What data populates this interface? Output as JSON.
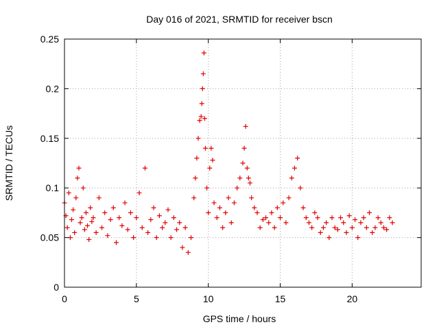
{
  "chart_data": {
    "type": "scatter",
    "title": "Day 016 of 2021, SRMTID for receiver bscn",
    "xlabel": "GPS time / hours",
    "ylabel": "SRMTID / TECUs",
    "xlim": [
      0,
      24.8
    ],
    "ylim": [
      0,
      0.25
    ],
    "x_ticks": [
      0,
      5,
      10,
      15,
      20
    ],
    "y_ticks": [
      0,
      0.05,
      0.1,
      0.15,
      0.2,
      0.25
    ],
    "y_tick_labels": [
      "0",
      "0.05",
      "0.1",
      "0.15",
      "0.2",
      "0.25"
    ],
    "grid": true,
    "marker": "+",
    "marker_color": "#e00000",
    "x_range_of_data": [
      0,
      22.8
    ],
    "series": [
      {
        "name": "SRMTID",
        "x": [
          0.0,
          0.1,
          0.2,
          0.3,
          0.4,
          0.5,
          0.6,
          0.7,
          0.8,
          0.9,
          1.0,
          1.1,
          1.2,
          1.3,
          1.4,
          1.5,
          1.6,
          1.7,
          1.8,
          1.9,
          2.0,
          2.2,
          2.4,
          2.6,
          2.8,
          3.0,
          3.2,
          3.4,
          3.6,
          3.8,
          4.0,
          4.2,
          4.4,
          4.6,
          4.8,
          5.0,
          5.2,
          5.4,
          5.6,
          5.8,
          6.0,
          6.2,
          6.4,
          6.6,
          6.8,
          7.0,
          7.2,
          7.4,
          7.6,
          7.8,
          8.0,
          8.2,
          8.4,
          8.6,
          8.8,
          9.0,
          9.1,
          9.2,
          9.3,
          9.4,
          9.5,
          9.55,
          9.6,
          9.65,
          9.7,
          9.75,
          9.8,
          9.9,
          10.0,
          10.1,
          10.2,
          10.3,
          10.4,
          10.6,
          10.8,
          11.0,
          11.2,
          11.4,
          11.6,
          11.8,
          12.0,
          12.2,
          12.4,
          12.5,
          12.6,
          12.7,
          12.8,
          12.9,
          13.0,
          13.2,
          13.4,
          13.6,
          13.8,
          14.0,
          14.2,
          14.4,
          14.6,
          14.8,
          15.0,
          15.2,
          15.4,
          15.6,
          15.8,
          16.0,
          16.2,
          16.4,
          16.6,
          16.8,
          17.0,
          17.2,
          17.4,
          17.6,
          17.8,
          18.0,
          18.2,
          18.4,
          18.6,
          18.8,
          19.0,
          19.2,
          19.4,
          19.6,
          19.8,
          20.0,
          20.2,
          20.4,
          20.6,
          20.8,
          21.0,
          21.2,
          21.4,
          21.6,
          21.8,
          22.0,
          22.2,
          22.4,
          22.6,
          22.8
        ],
        "y": [
          0.085,
          0.072,
          0.06,
          0.095,
          0.05,
          0.068,
          0.078,
          0.055,
          0.09,
          0.11,
          0.12,
          0.065,
          0.07,
          0.1,
          0.058,
          0.075,
          0.062,
          0.048,
          0.08,
          0.066,
          0.07,
          0.055,
          0.09,
          0.06,
          0.075,
          0.052,
          0.068,
          0.08,
          0.045,
          0.07,
          0.062,
          0.085,
          0.058,
          0.075,
          0.05,
          0.07,
          0.095,
          0.06,
          0.12,
          0.055,
          0.068,
          0.08,
          0.05,
          0.072,
          0.06,
          0.065,
          0.078,
          0.05,
          0.07,
          0.058,
          0.065,
          0.04,
          0.06,
          0.035,
          0.05,
          0.09,
          0.11,
          0.13,
          0.15,
          0.168,
          0.172,
          0.185,
          0.2,
          0.215,
          0.236,
          0.17,
          0.14,
          0.1,
          0.075,
          0.12,
          0.14,
          0.128,
          0.085,
          0.07,
          0.08,
          0.06,
          0.075,
          0.09,
          0.065,
          0.085,
          0.1,
          0.11,
          0.125,
          0.14,
          0.162,
          0.12,
          0.11,
          0.105,
          0.09,
          0.08,
          0.075,
          0.06,
          0.068,
          0.07,
          0.065,
          0.075,
          0.06,
          0.08,
          0.07,
          0.085,
          0.065,
          0.09,
          0.11,
          0.12,
          0.13,
          0.1,
          0.08,
          0.07,
          0.065,
          0.06,
          0.075,
          0.07,
          0.055,
          0.06,
          0.065,
          0.05,
          0.07,
          0.06,
          0.058,
          0.07,
          0.065,
          0.055,
          0.072,
          0.06,
          0.068,
          0.05,
          0.065,
          0.07,
          0.06,
          0.075,
          0.055,
          0.06,
          0.07,
          0.065,
          0.06,
          0.058,
          0.07,
          0.065
        ]
      }
    ]
  }
}
